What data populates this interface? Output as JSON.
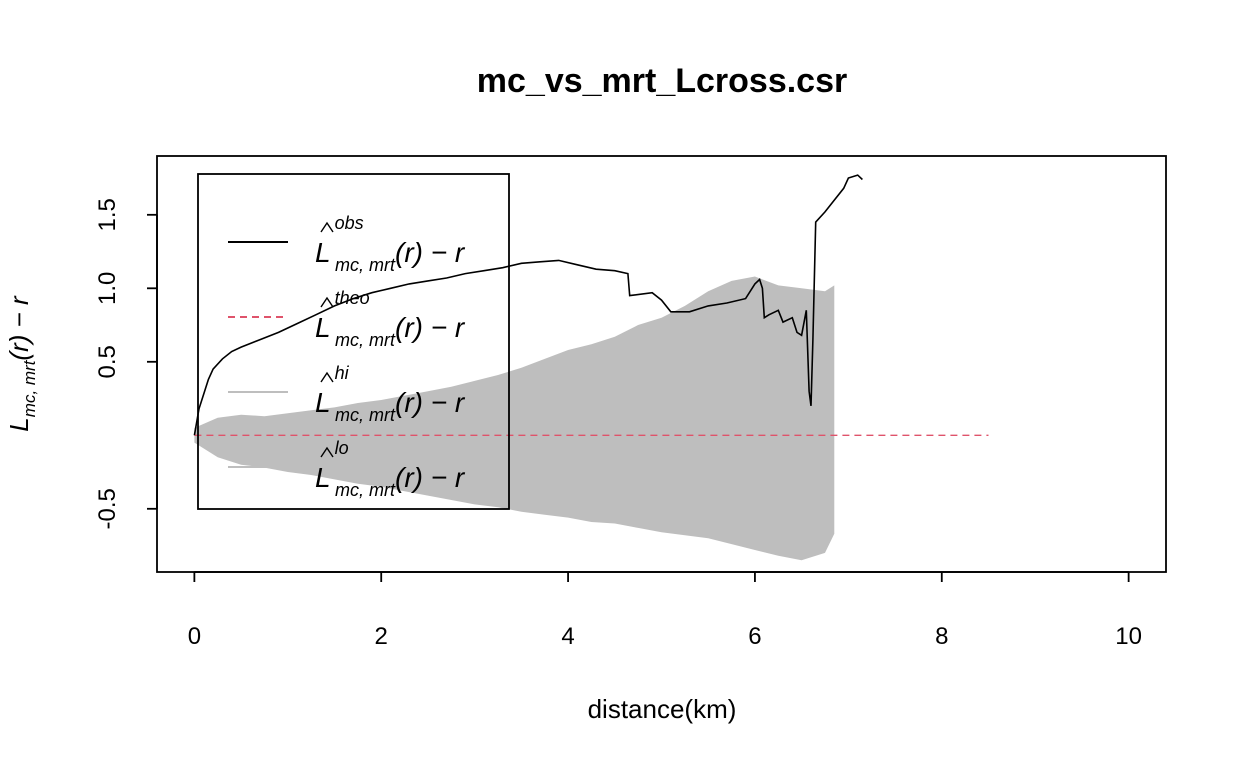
{
  "chart_data": {
    "type": "line",
    "title": "mc_vs_mrt_Lcross.csr",
    "xlabel": "distance(km)",
    "ylabel": {
      "base": "L",
      "sub": "mc, mrt",
      "tail": "(r) − r"
    },
    "xlim": [
      -0.4,
      10.4
    ],
    "ylim": [
      -0.93,
      1.9
    ],
    "x_ticks": [
      0,
      2,
      4,
      6,
      8,
      10
    ],
    "x_tick_labels": [
      "0",
      "2",
      "4",
      "6",
      "8",
      "10"
    ],
    "y_ticks": [
      -0.5,
      0.5,
      1.0,
      1.5
    ],
    "y_tick_labels": [
      "-0.5",
      "0.5",
      "1.0",
      "1.5"
    ],
    "grid": false,
    "legend_position": "top-left",
    "legend": [
      {
        "sup": "obs",
        "sub": "mc, mrt",
        "tail": "(r) − r",
        "color": "#000000",
        "style": "solid"
      },
      {
        "sup": "theo",
        "sub": "mc, mrt",
        "tail": "(r) − r",
        "color": "#DF536B",
        "style": "dashed"
      },
      {
        "sup": "hi",
        "sub": "mc, mrt",
        "tail": "(r) − r",
        "color": "#BEBEBE",
        "style": "solid"
      },
      {
        "sup": "lo",
        "sub": "mc, mrt",
        "tail": "(r) − r",
        "color": "#BEBEBE",
        "style": "solid"
      }
    ],
    "series": [
      {
        "key": "obs",
        "color": "#000000",
        "x": [
          0.0,
          0.05,
          0.1,
          0.15,
          0.2,
          0.3,
          0.4,
          0.5,
          0.7,
          0.9,
          1.1,
          1.3,
          1.5,
          1.7,
          1.9,
          2.1,
          2.3,
          2.5,
          2.7,
          2.9,
          3.1,
          3.3,
          3.5,
          3.7,
          3.9,
          4.1,
          4.3,
          4.5,
          4.64,
          4.66,
          4.9,
          5.0,
          5.1,
          5.3,
          5.5,
          5.7,
          5.9,
          6.0,
          6.05,
          6.08,
          6.1,
          6.15,
          6.25,
          6.3,
          6.4,
          6.45,
          6.5,
          6.55,
          6.58,
          6.6,
          6.62,
          6.65,
          6.75,
          6.85,
          6.95,
          7.0,
          7.1,
          7.15
        ],
        "y": [
          0.0,
          0.18,
          0.28,
          0.38,
          0.45,
          0.52,
          0.57,
          0.6,
          0.65,
          0.7,
          0.76,
          0.82,
          0.88,
          0.93,
          0.97,
          1.0,
          1.03,
          1.05,
          1.07,
          1.1,
          1.12,
          1.14,
          1.17,
          1.18,
          1.19,
          1.16,
          1.13,
          1.12,
          1.1,
          0.95,
          0.97,
          0.92,
          0.84,
          0.84,
          0.88,
          0.9,
          0.93,
          1.03,
          1.06,
          1.0,
          0.8,
          0.82,
          0.85,
          0.77,
          0.8,
          0.7,
          0.68,
          0.85,
          0.3,
          0.2,
          0.65,
          1.45,
          1.52,
          1.6,
          1.68,
          1.75,
          1.77,
          1.74
        ]
      },
      {
        "key": "theo",
        "color": "#DF536B",
        "x": [
          0.0,
          8.5
        ],
        "y": [
          0.0,
          0.0
        ]
      }
    ],
    "envelope": {
      "color": "#BEBEBE",
      "x": [
        0.0,
        0.25,
        0.5,
        0.75,
        1.0,
        1.25,
        1.5,
        1.75,
        2.0,
        2.25,
        2.5,
        2.75,
        3.0,
        3.25,
        3.5,
        3.75,
        4.0,
        4.25,
        4.5,
        4.75,
        5.0,
        5.25,
        5.5,
        5.75,
        6.0,
        6.25,
        6.5,
        6.75,
        6.85
      ],
      "hi": [
        0.05,
        0.12,
        0.14,
        0.13,
        0.15,
        0.17,
        0.19,
        0.22,
        0.24,
        0.27,
        0.3,
        0.33,
        0.37,
        0.41,
        0.46,
        0.52,
        0.58,
        0.62,
        0.67,
        0.75,
        0.8,
        0.88,
        0.98,
        1.05,
        1.08,
        1.02,
        1.0,
        0.98,
        1.02
      ],
      "lo": [
        -0.05,
        -0.15,
        -0.2,
        -0.22,
        -0.25,
        -0.27,
        -0.3,
        -0.33,
        -0.35,
        -0.38,
        -0.41,
        -0.44,
        -0.47,
        -0.49,
        -0.52,
        -0.54,
        -0.56,
        -0.59,
        -0.6,
        -0.63,
        -0.66,
        -0.68,
        -0.7,
        -0.74,
        -0.78,
        -0.82,
        -0.85,
        -0.8,
        -0.67
      ]
    }
  }
}
